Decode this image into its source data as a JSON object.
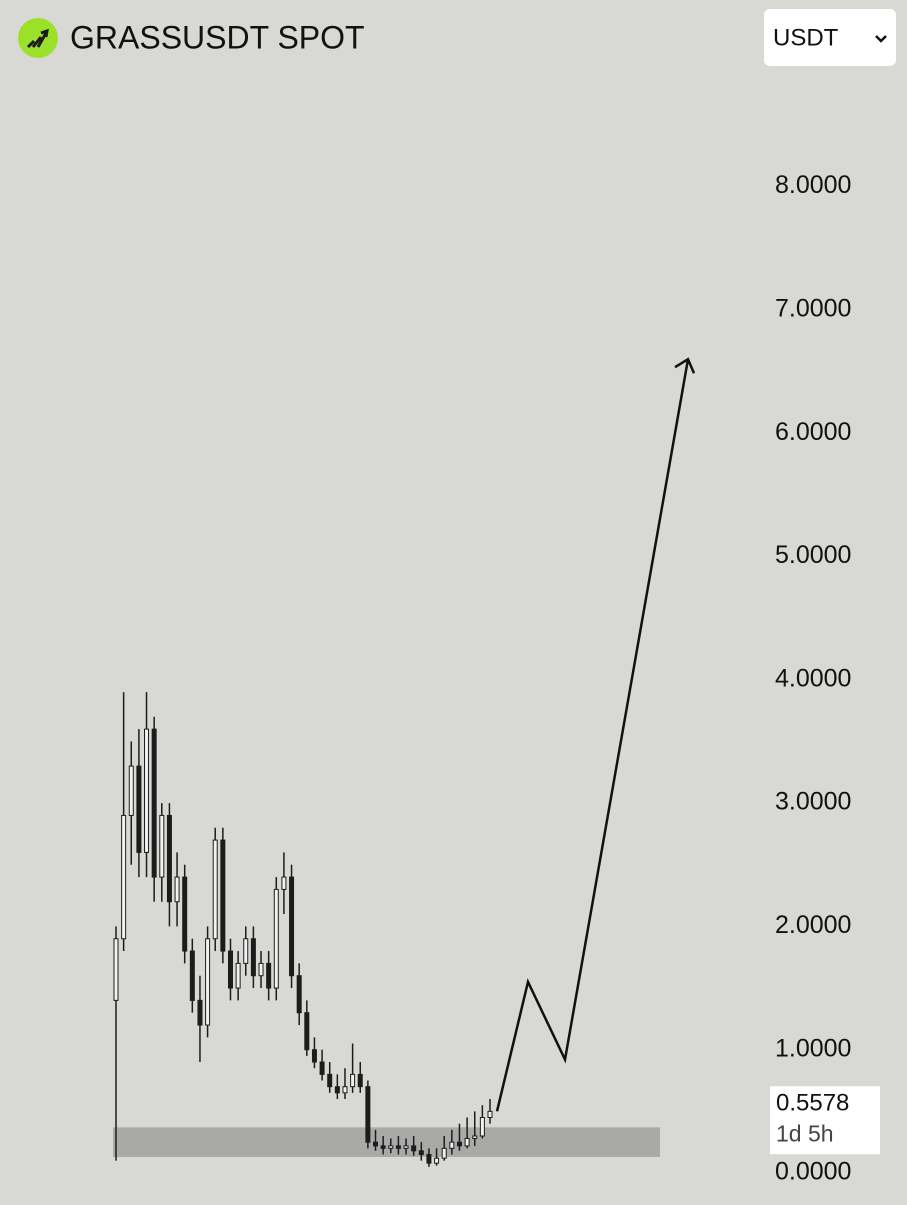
{
  "header": {
    "title": "GRASSUSDT SPOT",
    "currency": "USDT"
  },
  "chart_data": {
    "type": "candlestick",
    "open": [
      1.4,
      1.9,
      2.9,
      3.3,
      2.6,
      3.6,
      2.4,
      2.9,
      2.2,
      2.4,
      1.8,
      1.4,
      1.2,
      1.9,
      2.7,
      1.8,
      1.5,
      1.7,
      1.9,
      1.6,
      1.7,
      1.5,
      2.3,
      2.4,
      1.6,
      1.3,
      1.0,
      0.9,
      0.8,
      0.7,
      0.65,
      0.7,
      0.8,
      0.7,
      0.25,
      0.22,
      0.2,
      0.22,
      0.2,
      0.22,
      0.18,
      0.15,
      0.08,
      0.12,
      0.2,
      0.25,
      0.22,
      0.28,
      0.3,
      0.45
    ],
    "high": [
      2.0,
      3.9,
      3.5,
      3.6,
      3.9,
      3.7,
      3.0,
      3.0,
      2.6,
      2.5,
      1.9,
      1.6,
      2.0,
      2.8,
      2.8,
      1.9,
      1.8,
      2.0,
      2.0,
      1.8,
      1.8,
      2.4,
      2.6,
      2.5,
      1.7,
      1.4,
      1.1,
      1.0,
      0.9,
      0.8,
      0.85,
      1.05,
      0.9,
      0.75,
      0.35,
      0.3,
      0.28,
      0.3,
      0.28,
      0.3,
      0.25,
      0.2,
      0.2,
      0.3,
      0.35,
      0.4,
      0.45,
      0.5,
      0.55,
      0.6
    ],
    "low": [
      0.1,
      1.8,
      2.5,
      2.4,
      2.4,
      2.2,
      2.2,
      2.0,
      2.0,
      1.7,
      1.3,
      0.9,
      1.1,
      1.8,
      1.7,
      1.4,
      1.4,
      1.6,
      1.5,
      1.5,
      1.4,
      1.4,
      2.1,
      1.5,
      1.2,
      0.95,
      0.85,
      0.75,
      0.65,
      0.6,
      0.6,
      0.65,
      0.65,
      0.2,
      0.18,
      0.15,
      0.16,
      0.15,
      0.15,
      0.14,
      0.1,
      0.05,
      0.06,
      0.1,
      0.15,
      0.18,
      0.2,
      0.22,
      0.28,
      0.4
    ],
    "close": [
      1.9,
      2.9,
      3.3,
      2.6,
      3.6,
      2.4,
      2.9,
      2.2,
      2.4,
      1.8,
      1.4,
      1.2,
      1.9,
      2.7,
      1.8,
      1.5,
      1.7,
      1.9,
      1.6,
      1.7,
      1.5,
      2.3,
      2.4,
      1.6,
      1.3,
      1.0,
      0.9,
      0.8,
      0.7,
      0.65,
      0.7,
      0.8,
      0.7,
      0.25,
      0.22,
      0.2,
      0.22,
      0.2,
      0.22,
      0.18,
      0.15,
      0.08,
      0.12,
      0.2,
      0.25,
      0.22,
      0.28,
      0.3,
      0.45,
      0.5
    ],
    "color": "#1c1c1c",
    "support_zone": [
      0.13,
      0.37
    ],
    "zone_color": "#a9a9a7",
    "projection": [
      0.5,
      1.55,
      0.92,
      6.6
    ],
    "last_price": {
      "value": 0.5578,
      "label": "0.5578"
    },
    "countdown": "1d 5h",
    "ylim": [
      0,
      8.2
    ],
    "yticks": [
      {
        "value": 0,
        "label": "0.0000"
      },
      {
        "value": 1,
        "label": "1.0000"
      },
      {
        "value": 2,
        "label": "2.0000"
      },
      {
        "value": 3,
        "label": "3.0000"
      },
      {
        "value": 4,
        "label": "4.0000"
      },
      {
        "value": 5,
        "label": "5.0000"
      },
      {
        "value": 6,
        "label": "6.0000"
      },
      {
        "value": 7,
        "label": "7.0000"
      },
      {
        "value": 8,
        "label": "8.0000"
      }
    ]
  }
}
